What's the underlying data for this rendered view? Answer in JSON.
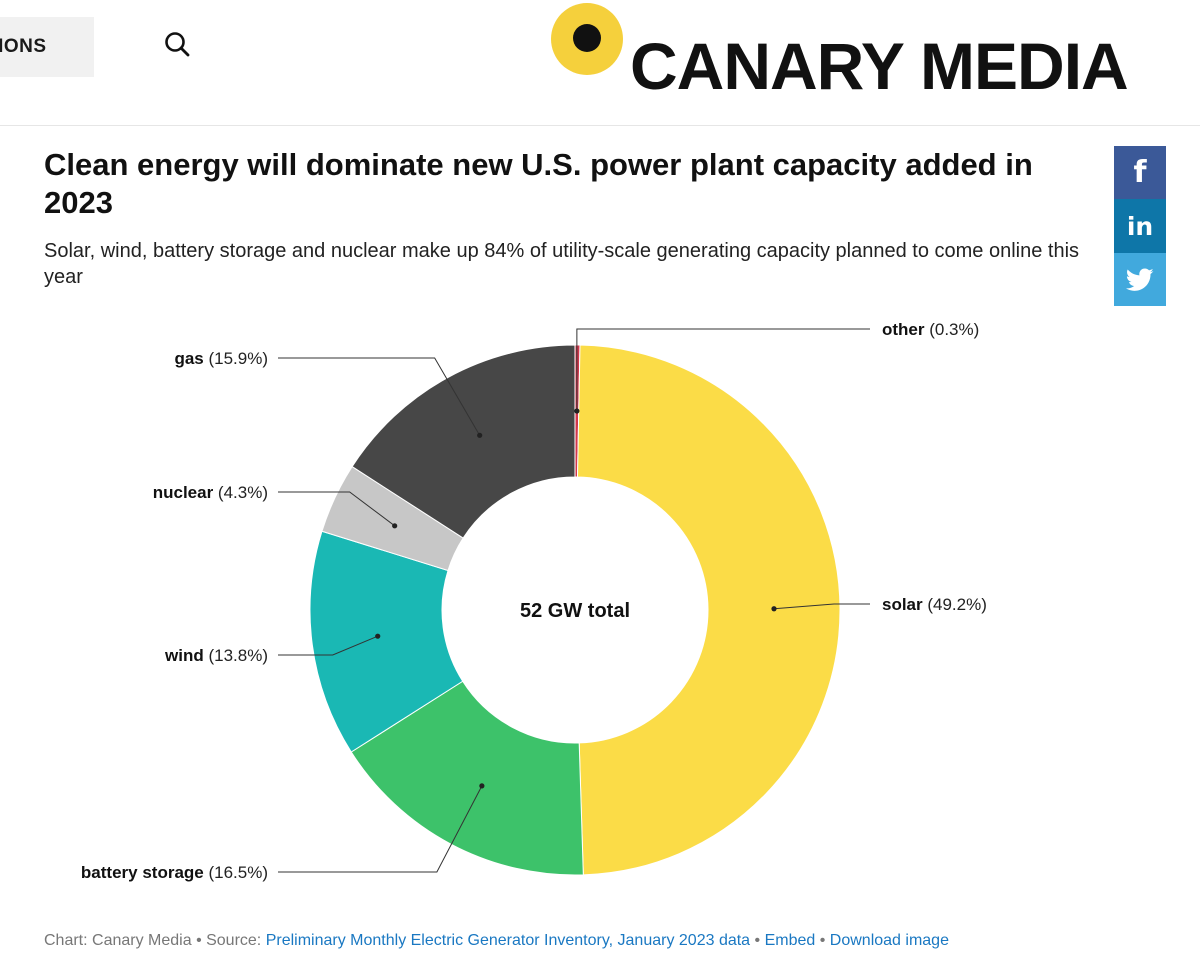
{
  "nav": {
    "menu_label": "TIONS"
  },
  "brand": {
    "name": "CANARY MEDIA",
    "dot_color": "#f5d03c"
  },
  "header": {
    "title": "Clean energy will dominate new U.S. power plant capacity added in 2023",
    "subtitle": "Solar, wind, battery storage and nuclear make up 84% of utility-scale generating capacity planned to come online this year"
  },
  "share": {
    "facebook": "f",
    "linkedin": "in",
    "twitter": "twitter-icon"
  },
  "chart_data": {
    "type": "pie",
    "donut": true,
    "title": "Clean energy will dominate new U.S. power plant capacity added in 2023",
    "center_label": "52 GW total",
    "slices": [
      {
        "name": "other",
        "value": 0.3,
        "label": "(0.3%)",
        "color": "#d1374b"
      },
      {
        "name": "solar",
        "value": 49.2,
        "label": "(49.2%)",
        "color": "#fbdc47"
      },
      {
        "name": "battery storage",
        "value": 16.5,
        "label": "(16.5%)",
        "color": "#3dc26a"
      },
      {
        "name": "wind",
        "value": 13.8,
        "label": "(13.8%)",
        "color": "#1ab8b4"
      },
      {
        "name": "nuclear",
        "value": 4.3,
        "label": "(4.3%)",
        "color": "#c7c7c7"
      },
      {
        "name": "gas",
        "value": 15.9,
        "label": "(15.9%)",
        "color": "#474747"
      }
    ]
  },
  "footer": {
    "prefix": "Chart: Canary Media • Source: ",
    "source_link": "Preliminary Monthly Electric Generator Inventory, January 2023 data",
    "sep1": " • ",
    "embed": "Embed",
    "sep2": " • ",
    "download": "Download image"
  }
}
